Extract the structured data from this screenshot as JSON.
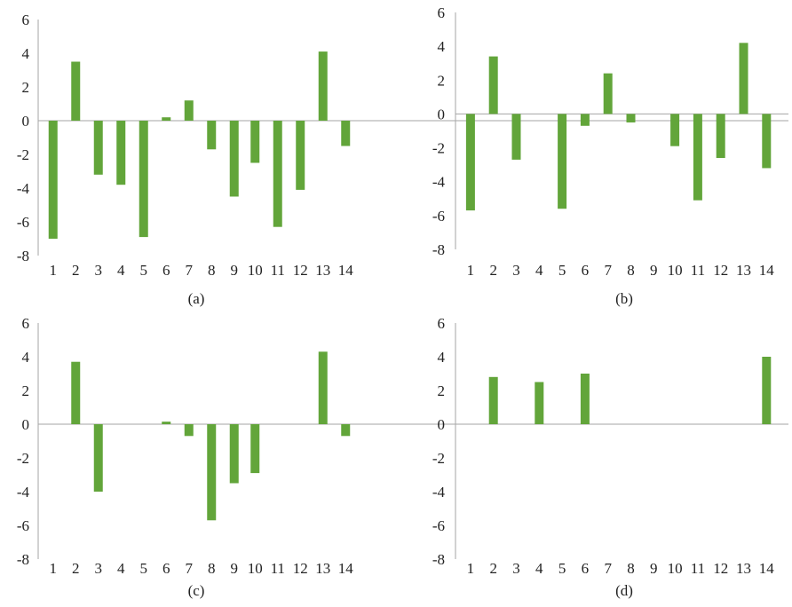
{
  "colors": {
    "bar": "#62a53a",
    "axis": "#a6a6a6",
    "text": "#222222"
  },
  "chart_data": [
    {
      "type": "bar",
      "panel_label": "(a)",
      "categories": [
        "1",
        "2",
        "3",
        "4",
        "5",
        "6",
        "7",
        "8",
        "9",
        "10",
        "11",
        "12",
        "13",
        "14"
      ],
      "values": [
        -7.0,
        3.5,
        -3.2,
        -3.8,
        -6.9,
        0.2,
        1.2,
        -1.7,
        -4.5,
        -2.5,
        -6.3,
        -4.1,
        4.1,
        -1.5
      ],
      "ylim": [
        -8,
        6
      ],
      "yticks": [
        6,
        4,
        2,
        0,
        -2,
        -4,
        -6,
        -8
      ],
      "title": "",
      "xlabel": "",
      "ylabel": "",
      "legend": false,
      "grid": false
    },
    {
      "type": "bar",
      "panel_label": "(b)",
      "categories": [
        "1",
        "2",
        "3",
        "4",
        "5",
        "6",
        "7",
        "8",
        "9",
        "10",
        "11",
        "12",
        "13",
        "14"
      ],
      "values": [
        -5.7,
        3.4,
        -2.7,
        0,
        -5.6,
        -0.7,
        2.4,
        -0.5,
        0,
        -1.9,
        -5.1,
        -2.6,
        4.2,
        -3.2
      ],
      "ylim": [
        -8,
        6
      ],
      "yticks": [
        6,
        4,
        2,
        0,
        -2,
        -4,
        -6,
        -8
      ],
      "title": "",
      "xlabel": "",
      "ylabel": "",
      "legend": false,
      "grid": false
    },
    {
      "type": "bar",
      "panel_label": "(c)",
      "categories": [
        "1",
        "2",
        "3",
        "4",
        "5",
        "6",
        "7",
        "8",
        "9",
        "10",
        "11",
        "12",
        "13",
        "14"
      ],
      "values": [
        0,
        3.7,
        -4.0,
        0,
        0,
        0.15,
        -0.7,
        -5.7,
        -3.5,
        -2.9,
        0,
        0,
        4.3,
        -0.7
      ],
      "ylim": [
        -8,
        6
      ],
      "yticks": [
        6,
        4,
        2,
        0,
        -2,
        -4,
        -6,
        -8
      ],
      "title": "",
      "xlabel": "",
      "ylabel": "",
      "legend": false,
      "grid": false
    },
    {
      "type": "bar",
      "panel_label": "(d)",
      "categories": [
        "1",
        "2",
        "3",
        "4",
        "5",
        "6",
        "7",
        "8",
        "9",
        "10",
        "11",
        "12",
        "13",
        "14"
      ],
      "values": [
        0,
        2.8,
        0,
        2.5,
        0,
        3.0,
        0,
        0,
        0,
        0,
        0,
        0,
        0,
        4.0
      ],
      "ylim": [
        -8,
        6
      ],
      "yticks": [
        6,
        4,
        2,
        0,
        -2,
        -4,
        -6,
        -8
      ],
      "title": "",
      "xlabel": "",
      "ylabel": "",
      "legend": false,
      "grid": false
    }
  ]
}
